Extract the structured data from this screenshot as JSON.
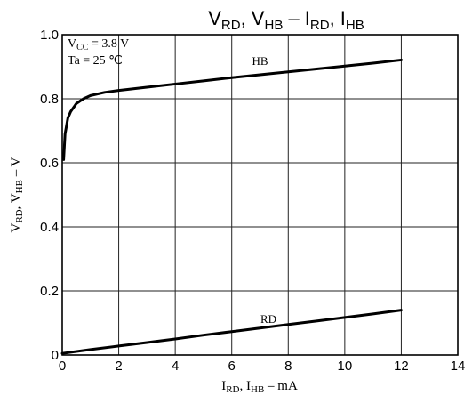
{
  "chart_data": {
    "type": "line",
    "title": {
      "main1": "V",
      "sub1": "RD",
      "sep1": ", V",
      "sub2": "HB",
      "sep2": " – I",
      "sub3": "RD",
      "sep3": ", I",
      "sub4": "HB"
    },
    "xlabel": {
      "p1": "I",
      "s1": "RD",
      "p2": ", I",
      "s2": "HB",
      "p3": " – mA"
    },
    "ylabel": {
      "p1": "V",
      "s1": "RD",
      "p2": ", V",
      "s2": "HB",
      "p3": " – V"
    },
    "xlim": [
      0,
      14
    ],
    "ylim": [
      0,
      1.0
    ],
    "x_ticks": [
      "0",
      "2",
      "4",
      "6",
      "8",
      "10",
      "12",
      "14"
    ],
    "y_ticks": [
      "0",
      "0.2",
      "0.4",
      "0.6",
      "0.8",
      "1.0"
    ],
    "grid": true,
    "conditions": {
      "vcc": {
        "p1": "V",
        "s1": "CC",
        "p2": " = 3.8 V"
      },
      "ta": "Ta = 25 ℃"
    },
    "series": [
      {
        "name": "HB",
        "x": [
          0.05,
          0.1,
          0.2,
          0.3,
          0.5,
          0.75,
          1,
          1.5,
          2,
          3,
          4,
          5,
          6,
          7,
          8,
          9,
          10,
          11,
          12
        ],
        "y": [
          0.61,
          0.69,
          0.74,
          0.76,
          0.785,
          0.8,
          0.81,
          0.82,
          0.826,
          0.836,
          0.846,
          0.856,
          0.866,
          0.875,
          0.884,
          0.893,
          0.902,
          0.911,
          0.921
        ]
      },
      {
        "name": "RD",
        "x": [
          0,
          1,
          2,
          3,
          4,
          5,
          6,
          7,
          8,
          9,
          10,
          11,
          12
        ],
        "y": [
          0.005,
          0.017,
          0.028,
          0.039,
          0.05,
          0.062,
          0.073,
          0.084,
          0.095,
          0.106,
          0.117,
          0.128,
          0.14
        ]
      }
    ]
  }
}
